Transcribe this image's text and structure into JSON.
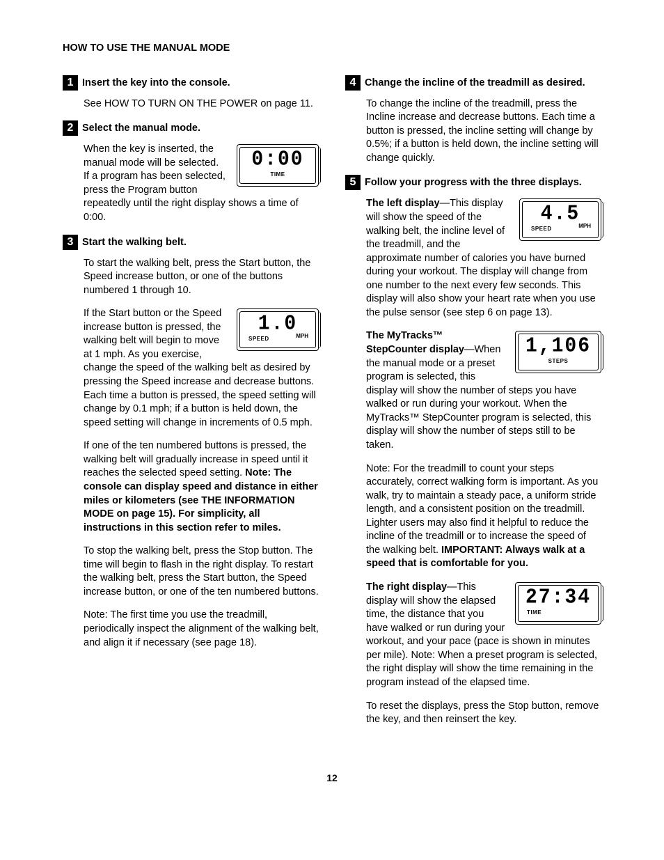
{
  "section_title": "HOW TO USE THE MANUAL MODE",
  "page_number": "12",
  "left_column": {
    "step1": {
      "num": "1",
      "title": "Insert the key into the console.",
      "p1": "See HOW TO TURN ON THE POWER on page 11."
    },
    "step2": {
      "num": "2",
      "title": "Select the manual mode.",
      "p1a": "When the key is inserted, the manual mode will be selected. If a program has been selected, press the Program button repeat",
      "p1b": "edly until the right display shows a time of 0:00.",
      "lcd": {
        "value": "0:00",
        "label": "TIME"
      }
    },
    "step3": {
      "num": "3",
      "title": "Start the walking belt.",
      "p1": "To start the walking belt, press the Start button, the Speed increase button, or one of the buttons numbered 1 through 10.",
      "p2a": "If the Start button or the Speed increase button is pressed, the walking belt will begin to move at 1 mph. As you exercise, change",
      "p2b": "the speed of the walking belt as desired by pressing the Speed increase and decrease buttons. Each time a button is pressed, the speed setting will change by 0.1 mph; if a button is held down, the speed setting will change in increments of 0.5 mph.",
      "lcd": {
        "value": "1.0",
        "label": "SPEED",
        "unit": "MPH"
      },
      "p3a": "If one of the ten numbered buttons is pressed, the walking belt will gradually increase in speed until it reaches the selected speed setting. ",
      "p3b": "Note: The console can display speed and distance in either miles or kilometers (see THE INFORMATION MODE on page 15). For simplicity, all instructions in this section refer to miles.",
      "p4": "To stop the walking belt, press the Stop button. The time will begin to flash in the right display. To restart the walking belt, press the Start button, the Speed increase button, or one of the ten numbered buttons.",
      "p5": "Note: The first time you use the treadmill, periodically inspect the alignment of the walking belt, and align it if necessary (see page 18)."
    }
  },
  "right_column": {
    "step4": {
      "num": "4",
      "title": "Change the incline of the treadmill as desired.",
      "p1": "To change the incline of the treadmill, press the Incline increase and decrease buttons. Each time a button is pressed, the incline setting will change by 0.5%; if a button is held down, the incline setting will change quickly."
    },
    "step5": {
      "num": "5",
      "title": "Follow your progress with the three displays.",
      "left_display": {
        "head": "The left display",
        "p1a": "—This display will show the speed of the walking belt, the incline level of the treadmill, and the approximate number of",
        "p1b": "calories you have burned during your workout. The display will change from one number to the next every few seconds. This display will also show your heart rate when you use the pulse sensor (see step 6 on page 13).",
        "lcd": {
          "value": "4.5",
          "label": "SPEED",
          "unit": "MPH"
        }
      },
      "mytracks": {
        "head": "The MyTracks™ StepCounter display",
        "p1a": "—When the manual mode or a preset program is selected, this display",
        "p1b": "will show the number of steps you have walked or run during your workout. When the MyTracks™ StepCounter program is selected, this display will show the number of steps still to be taken.",
        "lcd": {
          "value": "1,106",
          "label": "STEPS"
        },
        "p2a": "Note: For the treadmill to count your steps accurately, correct walking form is important. As you walk, try to maintain a steady pace, a uniform stride length, and a consistent position on the treadmill. Lighter users may also find it helpful to reduce the incline of the treadmill or to increase the speed of the walking belt. ",
        "p2b": "IMPORTANT: Always walk at a speed that is comfortable for you."
      },
      "right_display": {
        "head": "The right display",
        "p1a": "—This display will show the elapsed time, the distance that you have walked or run during your workout, and your",
        "p1b": "pace (pace is shown in minutes per mile). Note: When a preset program is selected, the right display will show the time remaining in the program instead of the elapsed time.",
        "lcd": {
          "value": "27:34",
          "label": "TIME"
        },
        "p2": "To reset the displays, press the Stop button, remove the key, and then reinsert the key."
      }
    }
  }
}
